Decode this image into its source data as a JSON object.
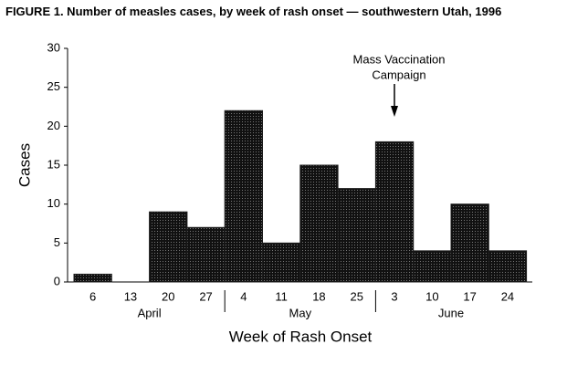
{
  "chart_data": {
    "type": "bar",
    "title": "FIGURE 1. Number of measles cases, by week of rash onset — southwestern Utah, 1996",
    "categories": [
      "6",
      "13",
      "20",
      "27",
      "4",
      "11",
      "18",
      "25",
      "3",
      "10",
      "17",
      "24"
    ],
    "months": [
      "April",
      "May",
      "June"
    ],
    "values": [
      1,
      0,
      9,
      7,
      22,
      5,
      15,
      12,
      18,
      4,
      10,
      4
    ],
    "color": "#1c1c1c",
    "ylim": [
      0,
      30
    ],
    "yticks": [
      0,
      5,
      10,
      15,
      20,
      25,
      30
    ],
    "x_label": "Week of Rash Onset",
    "y_label": "Cases",
    "annotation": [
      "Mass Vaccination",
      "Campaign"
    ]
  }
}
